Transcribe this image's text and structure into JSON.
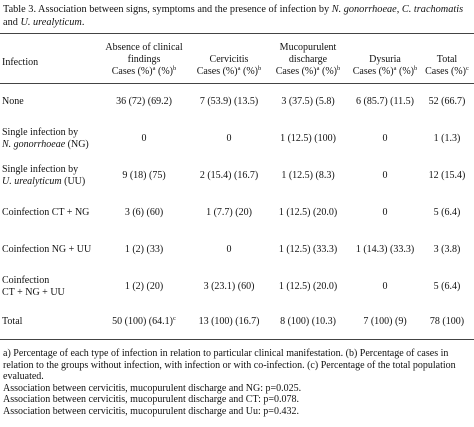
{
  "title": [
    {
      "t": "Table 3. Association between signs, symptoms and the presence of infection by "
    },
    {
      "i": "N. gonorrhoeae"
    },
    {
      "t": ", "
    },
    {
      "i": "C. trachomatis"
    },
    {
      "t": " and "
    },
    {
      "i": "U. urealyticum"
    },
    {
      "t": "."
    }
  ],
  "header": {
    "label": "Infection",
    "columns": [
      {
        "title": "Absence of clinical findings",
        "sub": [
          {
            "t": "Cases (%)"
          },
          {
            "sup": "a"
          },
          {
            "t": " (%)"
          },
          {
            "sup": "b"
          }
        ]
      },
      {
        "title": "Cervicitis",
        "sub": [
          {
            "t": "Cases (%)"
          },
          {
            "sup": "a"
          },
          {
            "t": " (%)"
          },
          {
            "sup": "b"
          }
        ]
      },
      {
        "title": "Mucopurulent discharge",
        "sub": [
          {
            "t": "Cases (%)"
          },
          {
            "sup": "a"
          },
          {
            "t": " (%)"
          },
          {
            "sup": "b"
          }
        ]
      },
      {
        "title": "Dysuria",
        "sub": [
          {
            "t": "Cases (%)"
          },
          {
            "sup": "a"
          },
          {
            "t": " (%)"
          },
          {
            "sup": "b"
          }
        ]
      },
      {
        "title": "Total",
        "sub": [
          {
            "t": "Cases (%)"
          },
          {
            "sup": "c"
          }
        ]
      }
    ]
  },
  "table": {
    "rows": [
      {
        "label": [
          [
            {
              "t": "None"
            }
          ]
        ],
        "cells": [
          "36 (72) (69.2)",
          "7 (53.9) (13.5)",
          "3 (37.5) (5.8)",
          "6 (85.7) (11.5)",
          "52 (66.7)"
        ]
      },
      {
        "label": [
          [
            {
              "t": "Single infection by"
            }
          ],
          [
            {
              "i": "N. gonorrhoeae"
            },
            {
              "t": " (NG)"
            }
          ]
        ],
        "cells": [
          "0",
          "0",
          "1 (12.5) (100)",
          "0",
          "1 (1.3)"
        ]
      },
      {
        "label": [
          [
            {
              "t": "Single infection by"
            }
          ],
          [
            {
              "i": "U. urealyticum"
            },
            {
              "t": " (UU)"
            }
          ]
        ],
        "cells": [
          "9 (18) (75)",
          "2 (15.4) (16.7)",
          "1 (12.5) (8.3)",
          "0",
          "12 (15.4)"
        ]
      },
      {
        "label": [
          [
            {
              "t": "Coinfection CT + NG"
            }
          ]
        ],
        "cells": [
          "3 (6) (60)",
          "1 (7.7) (20)",
          "1 (12.5) (20.0)",
          "0",
          "5 (6.4)"
        ]
      },
      {
        "label": [
          [
            {
              "t": "Coinfection NG + UU"
            }
          ]
        ],
        "cells": [
          "1 (2) (33)",
          "0",
          "1 (12.5) (33.3)",
          "1 (14.3) (33.3)",
          "3 (3.8)"
        ]
      },
      {
        "label": [
          [
            {
              "t": "Coinfection"
            }
          ],
          [
            {
              "t": "CT + NG + UU"
            }
          ]
        ],
        "cells": [
          "1 (2) (20)",
          "3 (23.1) (60)",
          "1 (12.5) (20.0)",
          "0",
          "5 (6.4)"
        ]
      },
      {
        "label": [
          [
            {
              "t": "Total"
            }
          ]
        ],
        "cells": [
          [
            {
              "t": "50 (100) (64.1)"
            },
            {
              "sup": "c"
            }
          ],
          "13 (100) (16.7)",
          "8 (100) (10.3)",
          "7 (100) (9)",
          "78 (100)"
        ]
      }
    ]
  },
  "footnotes": [
    "a) Percentage of each type of infection in relation to particular clinical manifestation. (b) Percentage of cases in relation to the groups without infection, with infection or with co-infection. (c) Percentage of the total population evaluated.",
    "Association between cervicitis, mucopurulent discharge and NG: p=0.025.",
    "Association between cervicitis, mucopurulent discharge and CT: p=0.078.",
    "Association between cervicitis, mucopurulent discharge and Uu: p=0.432."
  ]
}
